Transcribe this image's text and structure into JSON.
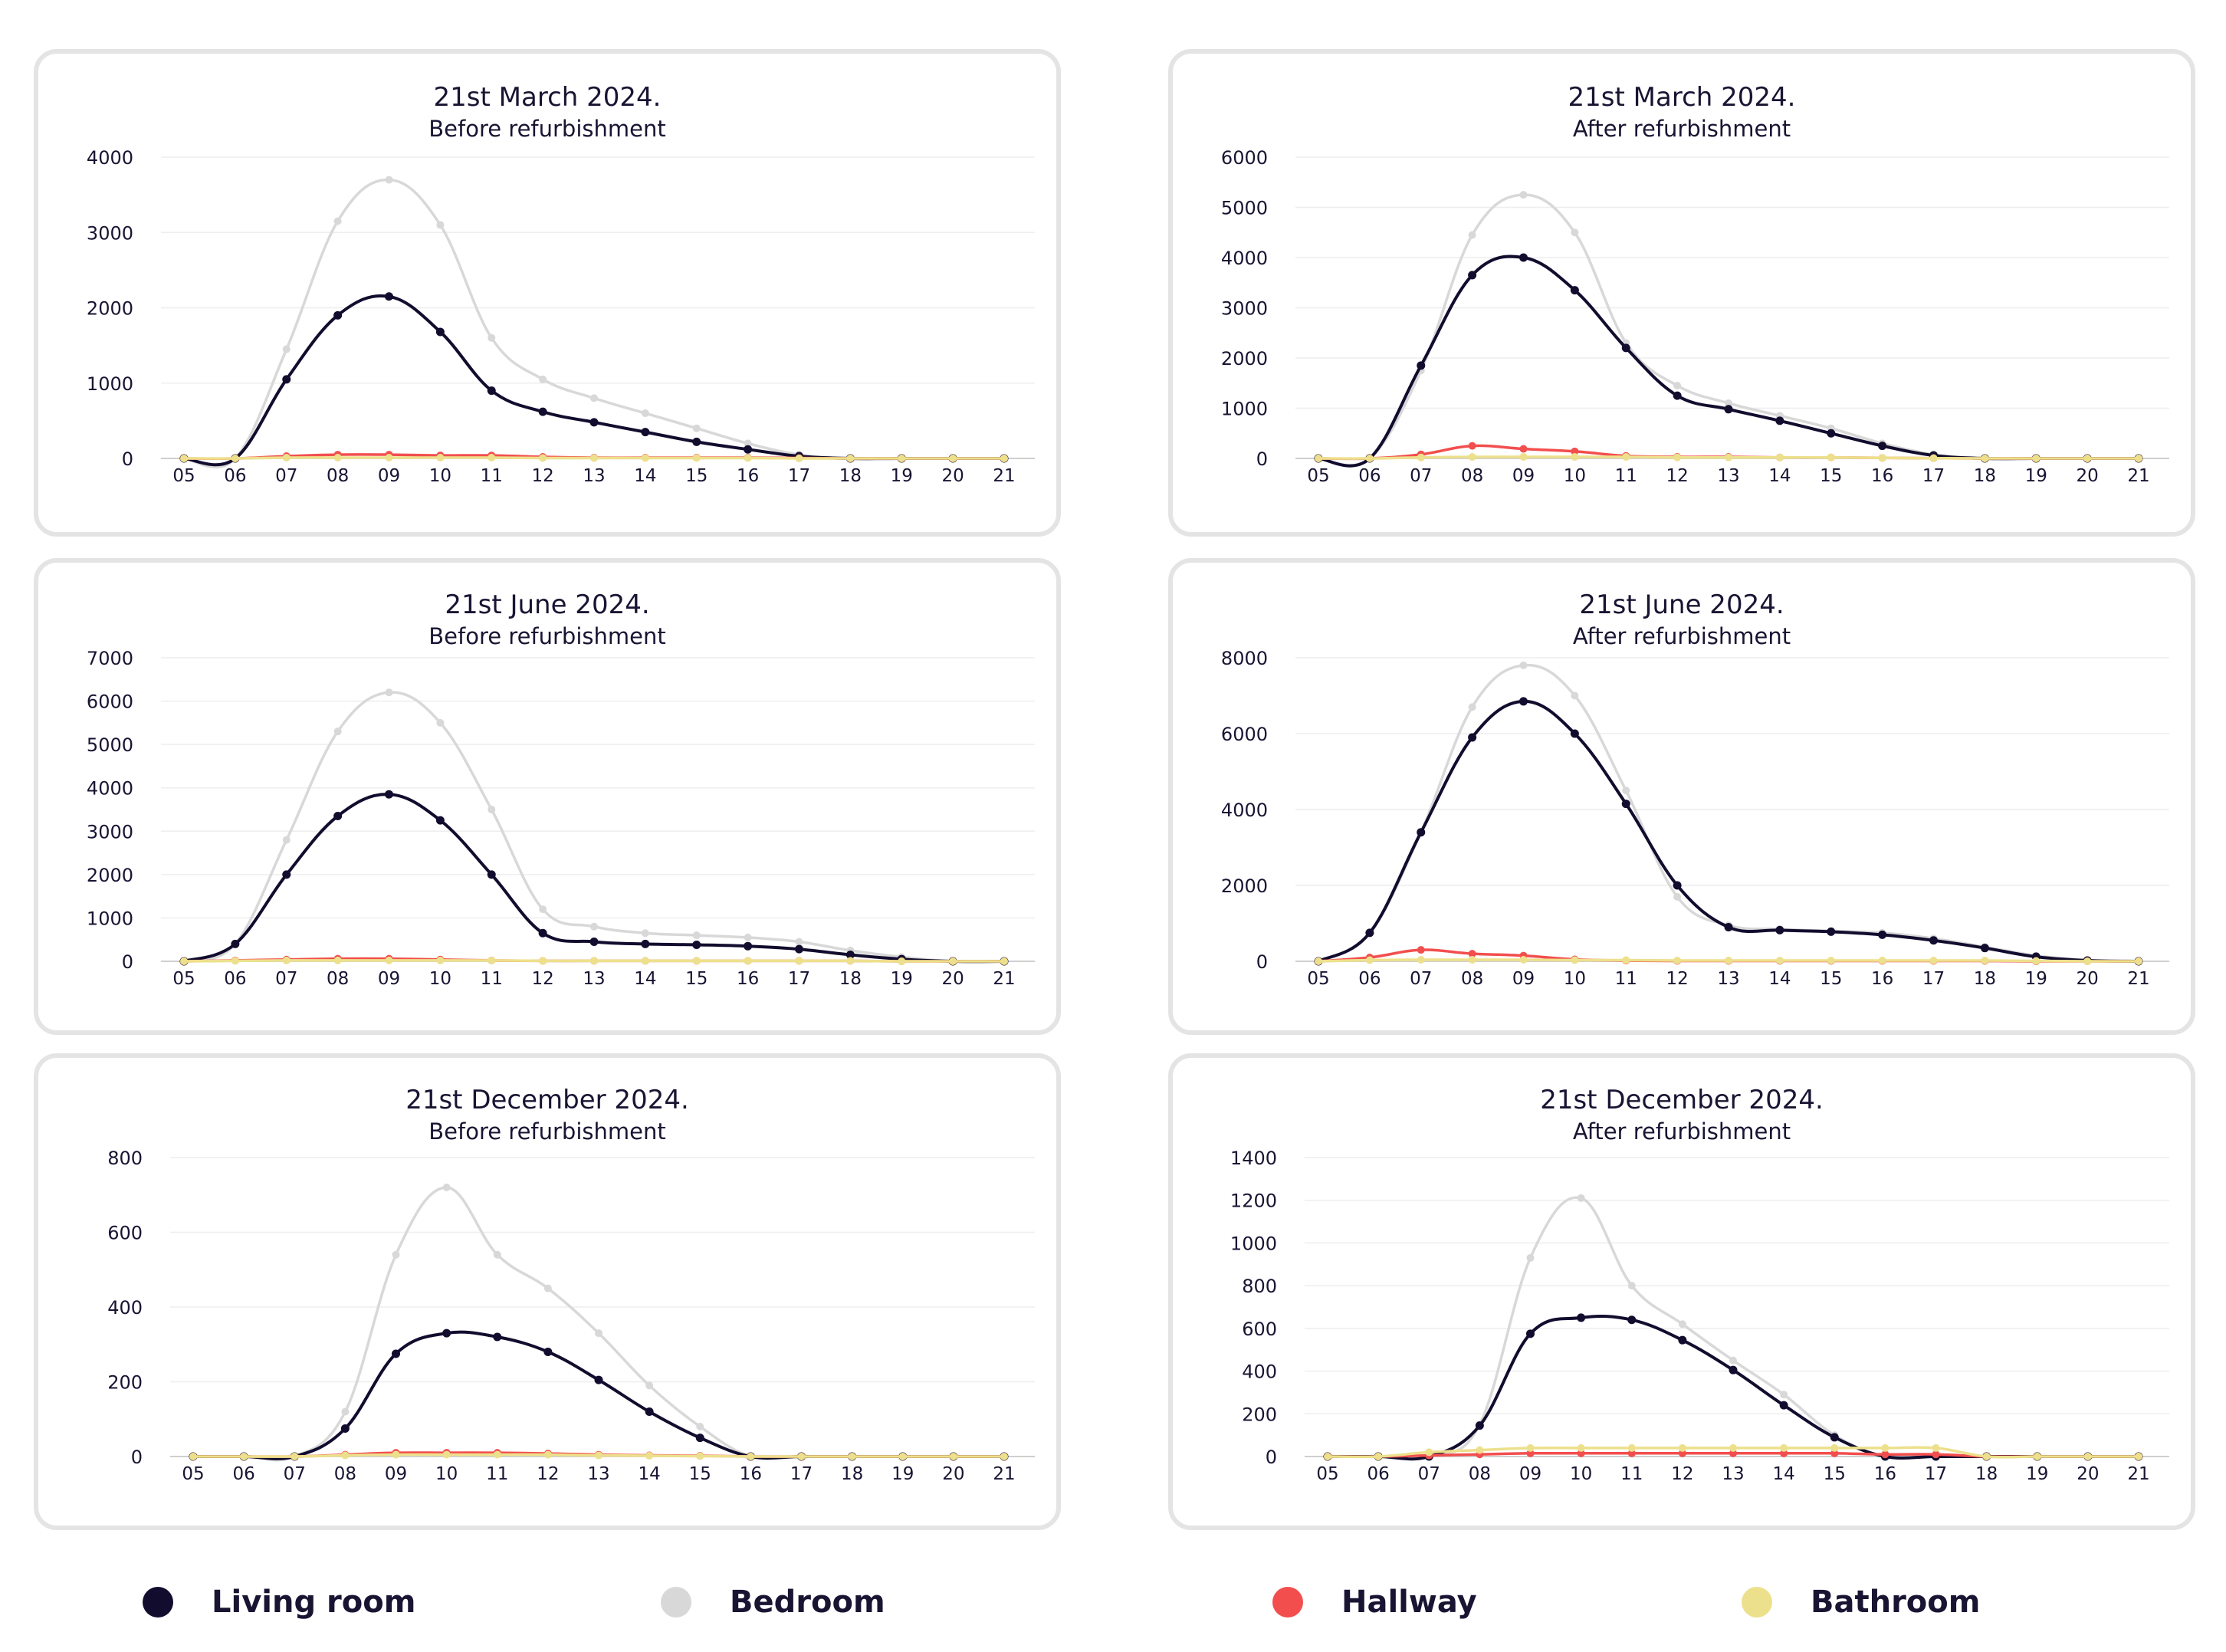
{
  "legend": [
    {
      "key": "living",
      "label": "Living room",
      "color": "#120c2e"
    },
    {
      "key": "bedroom",
      "label": "Bedroom",
      "color": "#d8d8d8"
    },
    {
      "key": "hallway",
      "label": "Hallway",
      "color": "#f24e4e"
    },
    {
      "key": "bathroom",
      "label": "Bathroom",
      "color": "#ede08c"
    }
  ],
  "chart_data": [
    {
      "type": "line",
      "title": "21st March 2024.",
      "subtitle": "Before refurbishment",
      "categories": [
        "05",
        "06",
        "07",
        "08",
        "09",
        "10",
        "11",
        "12",
        "13",
        "14",
        "15",
        "16",
        "17",
        "18",
        "19",
        "20",
        "21"
      ],
      "ylim": [
        0,
        4000
      ],
      "yticks": [
        0,
        1000,
        2000,
        3000,
        4000
      ],
      "series": [
        {
          "name": "Bedroom",
          "color": "#d8d8d8",
          "values": [
            0,
            0,
            1450,
            3150,
            3700,
            3100,
            1600,
            1050,
            800,
            600,
            400,
            200,
            50,
            0,
            0,
            0,
            0
          ]
        },
        {
          "name": "Living room",
          "color": "#120c2e",
          "values": [
            0,
            0,
            1050,
            1900,
            2150,
            1680,
            900,
            620,
            480,
            350,
            220,
            120,
            30,
            0,
            0,
            0,
            0
          ]
        },
        {
          "name": "Hallway",
          "color": "#f24e4e",
          "values": [
            0,
            0,
            30,
            50,
            50,
            40,
            40,
            20,
            10,
            10,
            10,
            10,
            5,
            0,
            0,
            0,
            0
          ]
        },
        {
          "name": "Bathroom",
          "color": "#ede08c",
          "values": [
            0,
            0,
            10,
            10,
            10,
            10,
            10,
            5,
            5,
            5,
            5,
            5,
            0,
            0,
            0,
            0,
            0
          ]
        }
      ]
    },
    {
      "type": "line",
      "title": "21st March 2024.",
      "subtitle": "After refurbishment",
      "categories": [
        "05",
        "06",
        "07",
        "08",
        "09",
        "10",
        "11",
        "12",
        "13",
        "14",
        "15",
        "16",
        "17",
        "18",
        "19",
        "20",
        "21"
      ],
      "ylim": [
        0,
        6000
      ],
      "yticks": [
        0,
        1000,
        2000,
        3000,
        4000,
        5000,
        6000
      ],
      "series": [
        {
          "name": "Bedroom",
          "color": "#d8d8d8",
          "values": [
            0,
            0,
            1750,
            4450,
            5250,
            4500,
            2300,
            1450,
            1100,
            850,
            600,
            300,
            80,
            0,
            0,
            0,
            0
          ]
        },
        {
          "name": "Living room",
          "color": "#120c2e",
          "values": [
            0,
            0,
            1850,
            3650,
            4000,
            3350,
            2200,
            1250,
            980,
            750,
            500,
            250,
            60,
            0,
            0,
            0,
            0
          ]
        },
        {
          "name": "Hallway",
          "color": "#f24e4e",
          "values": [
            0,
            0,
            80,
            250,
            190,
            140,
            50,
            30,
            30,
            20,
            20,
            10,
            5,
            0,
            0,
            0,
            0
          ]
        },
        {
          "name": "Bathroom",
          "color": "#ede08c",
          "values": [
            0,
            0,
            20,
            30,
            30,
            30,
            30,
            20,
            20,
            20,
            20,
            10,
            5,
            0,
            0,
            0,
            0
          ]
        }
      ]
    },
    {
      "type": "line",
      "title": "21st June 2024.",
      "subtitle": "Before refurbishment",
      "categories": [
        "05",
        "06",
        "07",
        "08",
        "09",
        "10",
        "11",
        "12",
        "13",
        "14",
        "15",
        "16",
        "17",
        "18",
        "19",
        "20",
        "21"
      ],
      "ylim": [
        0,
        7000
      ],
      "yticks": [
        0,
        1000,
        2000,
        3000,
        4000,
        5000,
        6000,
        7000
      ],
      "series": [
        {
          "name": "Bedroom",
          "color": "#d8d8d8",
          "values": [
            0,
            400,
            2800,
            5300,
            6200,
            5500,
            3500,
            1200,
            800,
            650,
            600,
            550,
            450,
            250,
            100,
            0,
            0
          ]
        },
        {
          "name": "Living room",
          "color": "#120c2e",
          "values": [
            0,
            400,
            2000,
            3350,
            3850,
            3250,
            2000,
            650,
            450,
            400,
            380,
            350,
            280,
            150,
            50,
            0,
            0
          ]
        },
        {
          "name": "Hallway",
          "color": "#f24e4e",
          "values": [
            0,
            20,
            40,
            60,
            60,
            40,
            20,
            10,
            10,
            10,
            10,
            10,
            10,
            10,
            0,
            0,
            0
          ]
        },
        {
          "name": "Bathroom",
          "color": "#ede08c",
          "values": [
            0,
            10,
            20,
            20,
            20,
            20,
            20,
            10,
            10,
            10,
            10,
            10,
            10,
            10,
            0,
            0,
            0
          ]
        }
      ]
    },
    {
      "type": "line",
      "title": "21st June 2024.",
      "subtitle": "After refurbishment",
      "categories": [
        "05",
        "06",
        "07",
        "08",
        "09",
        "10",
        "11",
        "12",
        "13",
        "14",
        "15",
        "16",
        "17",
        "18",
        "19",
        "20",
        "21"
      ],
      "ylim": [
        0,
        8000
      ],
      "yticks": [
        0,
        2000,
        4000,
        6000,
        8000
      ],
      "series": [
        {
          "name": "Bedroom",
          "color": "#d8d8d8",
          "values": [
            0,
            750,
            3400,
            6700,
            7800,
            7000,
            4500,
            1700,
            950,
            850,
            800,
            750,
            600,
            380,
            150,
            30,
            0
          ]
        },
        {
          "name": "Living room",
          "color": "#120c2e",
          "values": [
            0,
            750,
            3400,
            5900,
            6850,
            6000,
            4150,
            2000,
            900,
            820,
            780,
            700,
            550,
            350,
            120,
            20,
            0
          ]
        },
        {
          "name": "Hallway",
          "color": "#f24e4e",
          "values": [
            0,
            100,
            300,
            200,
            150,
            50,
            20,
            10,
            10,
            10,
            10,
            10,
            10,
            10,
            0,
            0,
            0
          ]
        },
        {
          "name": "Bathroom",
          "color": "#ede08c",
          "values": [
            0,
            30,
            40,
            40,
            40,
            30,
            30,
            20,
            20,
            20,
            20,
            20,
            20,
            20,
            10,
            0,
            0
          ]
        }
      ]
    },
    {
      "type": "line",
      "title": "21st December 2024.",
      "subtitle": "Before refurbishment",
      "categories": [
        "05",
        "06",
        "07",
        "08",
        "09",
        "10",
        "11",
        "12",
        "13",
        "14",
        "15",
        "16",
        "17",
        "18",
        "19",
        "20",
        "21"
      ],
      "ylim": [
        0,
        800
      ],
      "yticks": [
        0,
        200,
        400,
        600,
        800
      ],
      "series": [
        {
          "name": "Bedroom",
          "color": "#d8d8d8",
          "values": [
            0,
            0,
            0,
            120,
            540,
            720,
            540,
            450,
            330,
            190,
            80,
            0,
            0,
            0,
            0,
            0,
            0
          ]
        },
        {
          "name": "Living room",
          "color": "#120c2e",
          "values": [
            0,
            0,
            0,
            75,
            275,
            330,
            320,
            280,
            205,
            120,
            50,
            0,
            0,
            0,
            0,
            0,
            0
          ]
        },
        {
          "name": "Hallway",
          "color": "#f24e4e",
          "values": [
            0,
            0,
            0,
            5,
            10,
            10,
            10,
            8,
            5,
            3,
            2,
            0,
            0,
            0,
            0,
            0,
            0
          ]
        },
        {
          "name": "Bathroom",
          "color": "#ede08c",
          "values": [
            0,
            0,
            0,
            3,
            5,
            5,
            5,
            5,
            3,
            2,
            1,
            0,
            0,
            0,
            0,
            0,
            0
          ]
        }
      ]
    },
    {
      "type": "line",
      "title": "21st December 2024.",
      "subtitle": "After refurbishment",
      "categories": [
        "05",
        "06",
        "07",
        "08",
        "09",
        "10",
        "11",
        "12",
        "13",
        "14",
        "15",
        "16",
        "17",
        "18",
        "19",
        "20",
        "21"
      ],
      "ylim": [
        0,
        1400
      ],
      "yticks": [
        0,
        200,
        400,
        600,
        800,
        1000,
        1200,
        1400
      ],
      "series": [
        {
          "name": "Bedroom",
          "color": "#d8d8d8",
          "values": [
            0,
            0,
            0,
            150,
            930,
            1210,
            800,
            620,
            450,
            290,
            100,
            0,
            0,
            0,
            0,
            0,
            0
          ]
        },
        {
          "name": "Living room",
          "color": "#120c2e",
          "values": [
            0,
            0,
            0,
            145,
            575,
            650,
            640,
            545,
            405,
            240,
            90,
            0,
            0,
            0,
            0,
            0,
            0
          ]
        },
        {
          "name": "Hallway",
          "color": "#f24e4e",
          "values": [
            0,
            0,
            5,
            10,
            15,
            15,
            15,
            15,
            15,
            15,
            15,
            10,
            10,
            0,
            0,
            0,
            0
          ]
        },
        {
          "name": "Bathroom",
          "color": "#ede08c",
          "values": [
            0,
            0,
            20,
            30,
            40,
            40,
            40,
            40,
            40,
            40,
            40,
            40,
            40,
            0,
            0,
            0,
            0
          ]
        }
      ]
    }
  ]
}
